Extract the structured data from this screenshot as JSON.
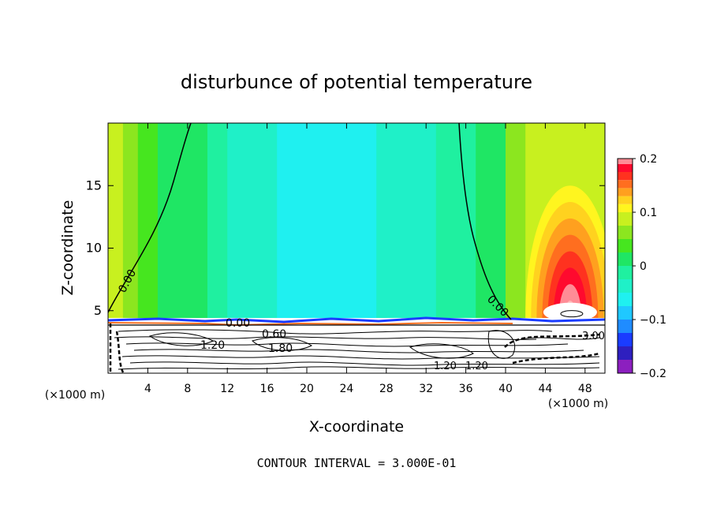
{
  "chart_data": {
    "type": "heatmap",
    "title": "disturbunce of potential temperature",
    "xlabel": "X-coordinate",
    "ylabel": "Z-coordinate",
    "x_unit_left": "(×1000 m)",
    "x_unit_right": "(×1000 m)",
    "xlim": [
      0,
      50
    ],
    "ylim": [
      0,
      20
    ],
    "xticks": [
      "4",
      "8",
      "12",
      "16",
      "20",
      "24",
      "28",
      "32",
      "36",
      "40",
      "44",
      "48"
    ],
    "yticks": [
      "5",
      "10",
      "15"
    ],
    "footer": "CONTOUR INTERVAL = 3.000E-01",
    "colorbar": {
      "min": -0.2,
      "max": 0.2,
      "tick_labels": [
        "0.2",
        "0.1",
        "0",
        "−0.1",
        "−0.2"
      ],
      "levels": [
        {
          "lo": -0.2,
          "color": "#8c1fbf"
        },
        {
          "lo": -0.175,
          "color": "#2e1fbf"
        },
        {
          "lo": -0.15,
          "color": "#1a3cff"
        },
        {
          "lo": -0.125,
          "color": "#1f8cff"
        },
        {
          "lo": -0.1,
          "color": "#1fc8ff"
        },
        {
          "lo": -0.075,
          "color": "#1ff0f0"
        },
        {
          "lo": -0.05,
          "color": "#1ff0c8"
        },
        {
          "lo": -0.025,
          "color": "#1ff0a0"
        },
        {
          "lo": 0.0,
          "color": "#1fe664"
        },
        {
          "lo": 0.025,
          "color": "#46e61f"
        },
        {
          "lo": 0.05,
          "color": "#8ce61f"
        },
        {
          "lo": 0.075,
          "color": "#c8f01f"
        },
        {
          "lo": 0.1,
          "color": "#fff51f"
        },
        {
          "lo": 0.115,
          "color": "#ffd21f"
        },
        {
          "lo": 0.13,
          "color": "#ffa01f"
        },
        {
          "lo": 0.145,
          "color": "#ff6e1f"
        },
        {
          "lo": 0.16,
          "color": "#ff321f"
        },
        {
          "lo": 0.175,
          "color": "#ff0a2e"
        },
        {
          "lo": 0.19,
          "color": "#ff8c96"
        },
        {
          "lo": 0.2,
          "color": "#ffb4b4"
        }
      ]
    },
    "field_bands": [
      {
        "x0": 0,
        "x1": 1.5,
        "value": 0.08
      },
      {
        "x0": 1.5,
        "x1": 3,
        "value": 0.06
      },
      {
        "x0": 3,
        "x1": 5,
        "value": 0.04
      },
      {
        "x0": 5,
        "x1": 10,
        "value": 0.01
      },
      {
        "x0": 10,
        "x1": 12,
        "value": -0.01
      },
      {
        "x0": 12,
        "x1": 17,
        "value": -0.04
      },
      {
        "x0": 17,
        "x1": 27,
        "value": -0.06
      },
      {
        "x0": 27,
        "x1": 33,
        "value": -0.04
      },
      {
        "x0": 33,
        "x1": 37,
        "value": -0.01
      },
      {
        "x0": 37,
        "x1": 40,
        "value": 0.02
      },
      {
        "x0": 40,
        "x1": 42,
        "value": 0.05
      },
      {
        "x0": 42,
        "x1": 50,
        "value": 0.09
      }
    ],
    "warm_anomaly": {
      "x_center": 46.5,
      "z_top": 15,
      "z_bottom": 4.5,
      "peak": 0.2
    },
    "contour_labels": [
      "0.00",
      "0.00",
      "0.00",
      "0.60",
      "1.20",
      "1.80",
      "1.20",
      "1.20",
      "3.00"
    ]
  }
}
